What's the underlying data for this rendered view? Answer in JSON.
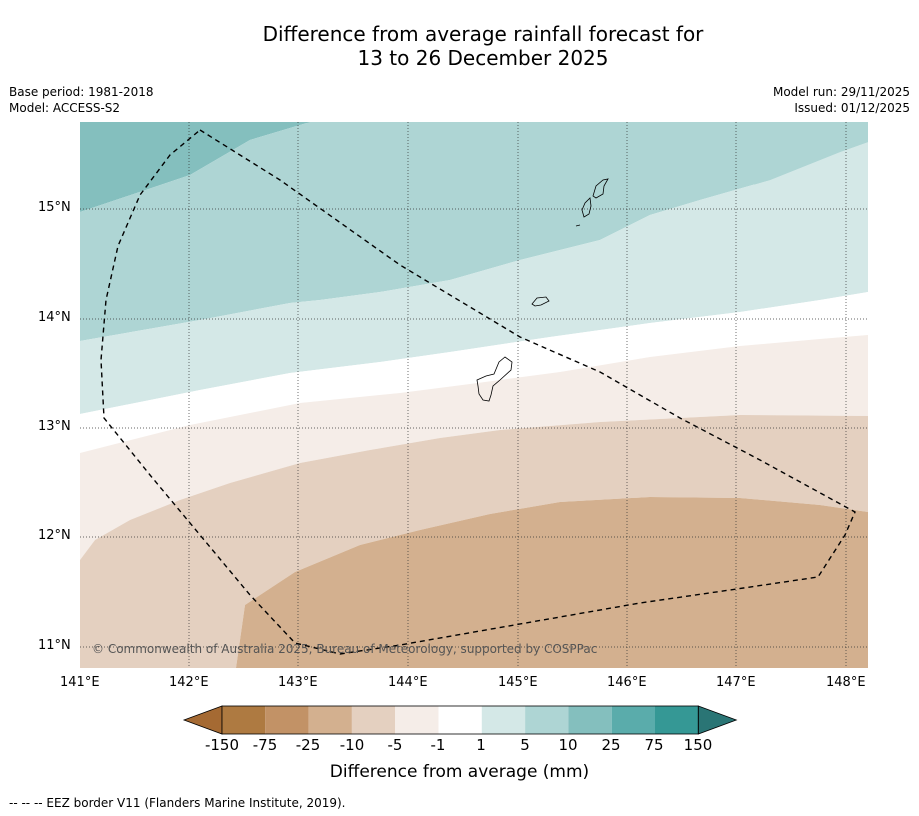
{
  "title_line1": "Difference from average rainfall forecast for",
  "title_line2": "13 to 26 December 2025",
  "base_period": "Base period: 1981-2018",
  "model": "Model: ACCESS-S2",
  "model_run": "Model run: 29/11/2025",
  "issued": "Issued: 01/12/2025",
  "copyright": "© Commonwealth of Australia 2025, Bureau of Meteorology, supported by COSPPac",
  "lat_ticks": [
    "15°N",
    "14°N",
    "13°N",
    "12°N",
    "11°N"
  ],
  "lon_ticks": [
    "141°E",
    "142°E",
    "143°E",
    "144°E",
    "145°E",
    "146°E",
    "147°E",
    "148°E"
  ],
  "colorbar": {
    "labels": [
      "-150",
      "-75",
      "-25",
      "-10",
      "-5",
      "-1",
      "1",
      "5",
      "10",
      "25",
      "75",
      "150"
    ],
    "colors": [
      "#a56a33",
      "#ae7a41",
      "#c29266",
      "#d3b08f",
      "#e4d0c0",
      "#f5ede8",
      "#ffffff",
      "#d4e8e7",
      "#aed5d4",
      "#84bfbe",
      "#5aacab",
      "#359895",
      "#2a7575"
    ],
    "title": "Difference from average (mm)"
  },
  "footer": "--  --  -- EEZ border V11 (Flanders Marine Institute, 2019)."
}
